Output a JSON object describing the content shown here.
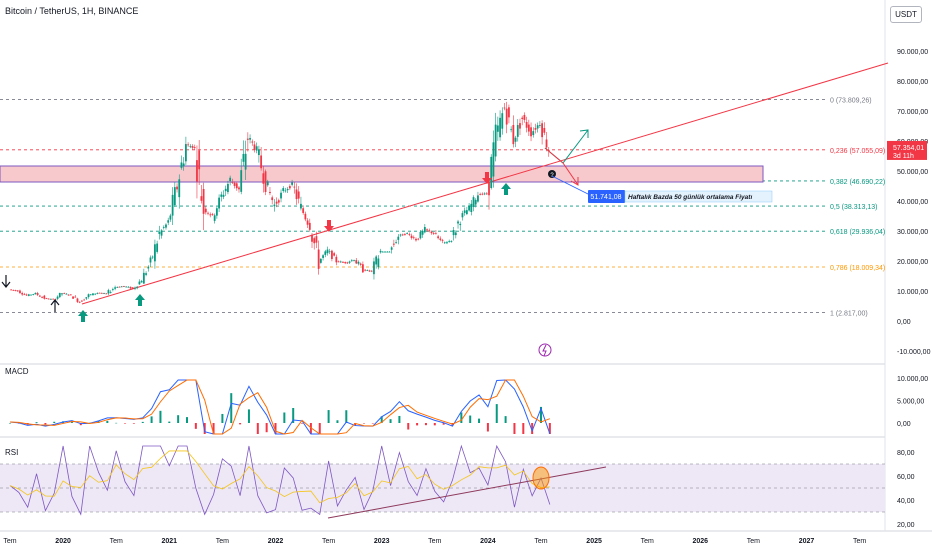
{
  "header": {
    "title": "Bitcoin / TetherUS, 1H, BINANCE",
    "currency_button": "USDT"
  },
  "colors": {
    "up": "#089981",
    "down": "#f23645",
    "fib_red": "#f23645",
    "fib_green": "#089981",
    "fib_orange": "#ff9800",
    "fib_gray": "#787b86",
    "zone": "#f7c9cc",
    "zone_border": "#7e57c2",
    "trend": "#f23645",
    "macd": "#2962ff",
    "signal": "#ff6d00",
    "rsi": "#7e57c2",
    "rsi_ma": "#f5c518",
    "accent": "#2962ff"
  },
  "main_axis": {
    "ticks": [
      "90.000,00",
      "80.000,00",
      "70.000,00",
      "60.000,00",
      "50.000,00",
      "40.000,00",
      "30.000,00",
      "20.000,00",
      "10.000,00",
      "0,00",
      "-10.000,00"
    ]
  },
  "price_label": {
    "value": "57.354,01",
    "timer": "3d 11h"
  },
  "fib_levels": [
    {
      "label": "0 (73.809,26)",
      "level": 73809.26,
      "color_key": "fib_gray"
    },
    {
      "label": "0,236 (57.055,09)",
      "level": 57055.09,
      "color_key": "fib_red"
    },
    {
      "label": "0,382 (46.690,22)",
      "level": 46690.22,
      "color_key": "fib_green"
    },
    {
      "label": "0,5 (38.313,13)",
      "level": 38313.13,
      "color_key": "fib_green"
    },
    {
      "label": "0,618 (29.936,04)",
      "level": 29936.04,
      "color_key": "fib_green"
    },
    {
      "label": "0,786 (18.009,34)",
      "level": 18009.34,
      "color_key": "fib_orange"
    },
    {
      "label": "1 (2.817,00)",
      "level": 2817.0,
      "color_key": "fib_gray"
    }
  ],
  "annotation": {
    "value": "51.741,08",
    "text": "Haftalık Bazda 50 günlük ortalama Fiyatı"
  },
  "macd": {
    "title": "MACD",
    "ticks": [
      "10.000,00",
      "5.000,00",
      "0,00"
    ]
  },
  "rsi": {
    "title": "RSI",
    "ticks": [
      "80,00",
      "60,00",
      "40,00",
      "20,00"
    ]
  },
  "time_axis": {
    "labels": [
      "Tem",
      "2020",
      "Tem",
      "2021",
      "Tem",
      "2022",
      "Tem",
      "2023",
      "Tem",
      "2024",
      "Tem",
      "2025",
      "Tem",
      "2026",
      "Tem",
      "2027",
      "Tem"
    ]
  },
  "chart_data": {
    "type": "candlestick",
    "title": "Bitcoin / TetherUS, 1H, BINANCE",
    "x": [
      "2019-07",
      "2019-08",
      "2019-09",
      "2019-10",
      "2019-11",
      "2019-12",
      "2020-01",
      "2020-02",
      "2020-03",
      "2020-04",
      "2020-05",
      "2020-06",
      "2020-07",
      "2020-08",
      "2020-09",
      "2020-10",
      "2020-11",
      "2020-12",
      "2021-01",
      "2021-02",
      "2021-03",
      "2021-04",
      "2021-05",
      "2021-06",
      "2021-07",
      "2021-08",
      "2021-09",
      "2021-10",
      "2021-11",
      "2021-12",
      "2022-01",
      "2022-02",
      "2022-03",
      "2022-04",
      "2022-05",
      "2022-06",
      "2022-07",
      "2022-08",
      "2022-09",
      "2022-10",
      "2022-11",
      "2022-12",
      "2023-01",
      "2023-02",
      "2023-03",
      "2023-04",
      "2023-05",
      "2023-06",
      "2023-07",
      "2023-08",
      "2023-09",
      "2023-10",
      "2023-11",
      "2023-12",
      "2024-01",
      "2024-02",
      "2024-03",
      "2024-04",
      "2024-05",
      "2024-06",
      "2024-07",
      "2024-08"
    ],
    "price": [
      10500,
      10000,
      8500,
      9200,
      7600,
      7200,
      9300,
      8600,
      6400,
      8600,
      9400,
      9100,
      11300,
      11600,
      10800,
      13800,
      19600,
      29000,
      33000,
      45000,
      58800,
      57700,
      37300,
      35000,
      41500,
      47100,
      43800,
      61300,
      57000,
      46200,
      38500,
      43200,
      45500,
      37700,
      31800,
      19900,
      23300,
      20000,
      19400,
      20500,
      17100,
      16500,
      23100,
      23100,
      28400,
      29200,
      27200,
      30400,
      29200,
      25900,
      26900,
      34600,
      37700,
      42300,
      42500,
      61200,
      71300,
      60600,
      67500,
      62700,
      66000,
      57354
    ],
    "ylim": [
      -10000,
      90000
    ],
    "fibonacci": [
      0.0,
      0.236,
      0.382,
      0.5,
      0.618,
      0.786,
      1.0
    ],
    "last_price": 57354.01,
    "ma50_weekly": 51741.08,
    "macd_range": [
      -3000,
      12000
    ],
    "rsi_range": [
      20,
      90
    ]
  }
}
